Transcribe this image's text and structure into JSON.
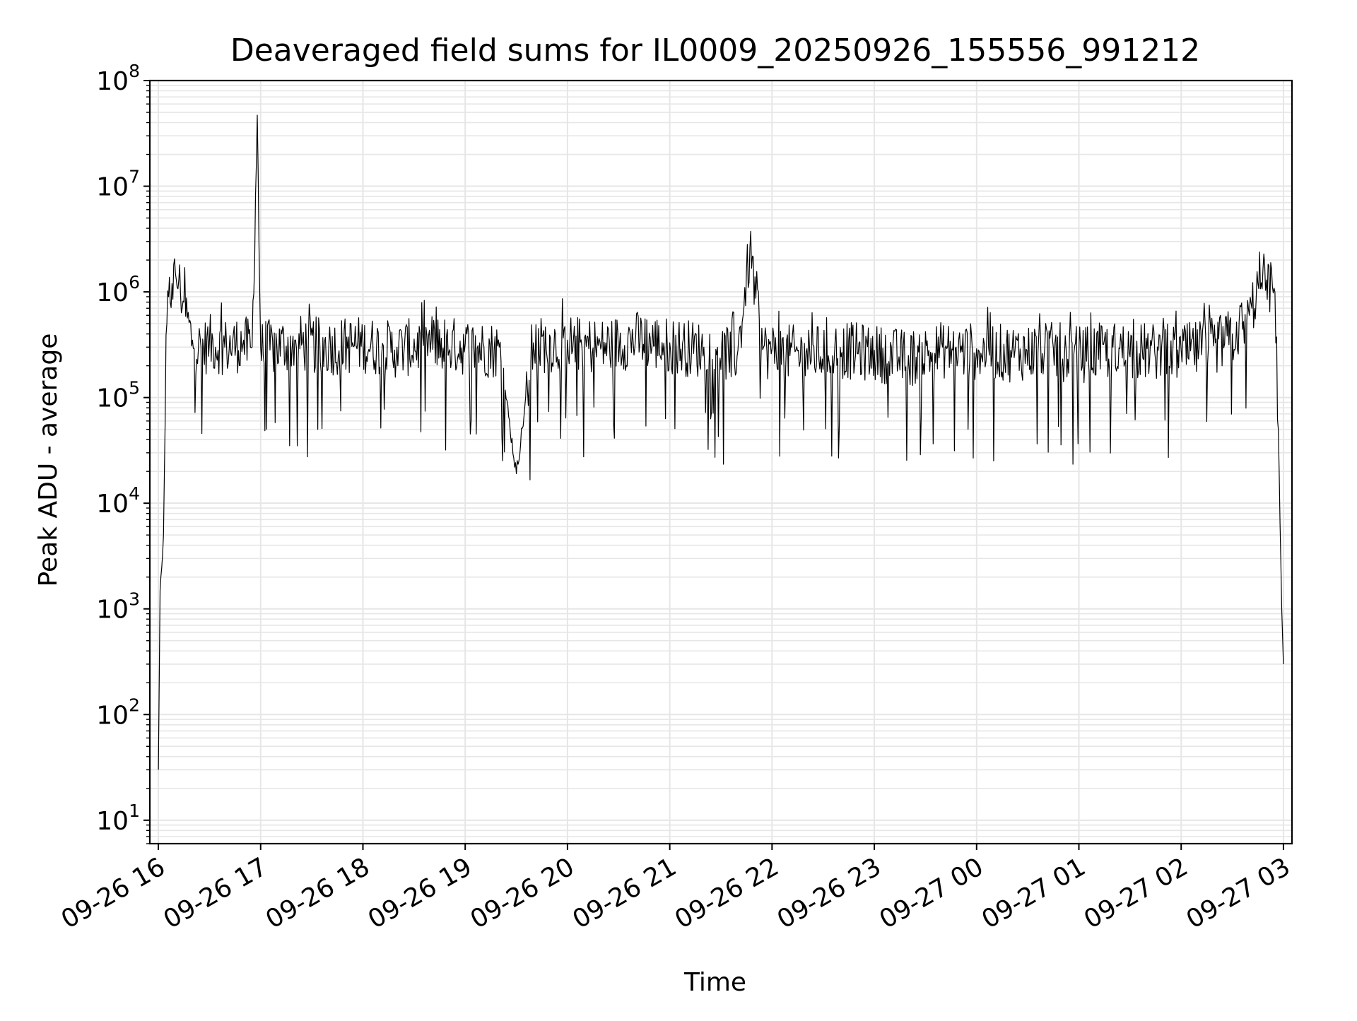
{
  "chart_data": {
    "type": "line",
    "title": "Deaveraged field sums for IL0009_20250926_155556_991212",
    "xlabel": "Time",
    "ylabel": "Peak ADU - average",
    "yscale": "log",
    "ylim": [
      6,
      100000000
    ],
    "xlim": [
      "2025-09-26 15:55",
      "2025-09-27 03:05"
    ],
    "grid": true,
    "line_color": "#000000",
    "grid_color": "#e6e6e6",
    "x_ticks": [
      {
        "value": "2025-09-26 16:00",
        "label": "09-26 16"
      },
      {
        "value": "2025-09-26 17:00",
        "label": "09-26 17"
      },
      {
        "value": "2025-09-26 18:00",
        "label": "09-26 18"
      },
      {
        "value": "2025-09-26 19:00",
        "label": "09-26 19"
      },
      {
        "value": "2025-09-26 20:00",
        "label": "09-26 20"
      },
      {
        "value": "2025-09-26 21:00",
        "label": "09-26 21"
      },
      {
        "value": "2025-09-26 22:00",
        "label": "09-26 22"
      },
      {
        "value": "2025-09-26 23:00",
        "label": "09-26 23"
      },
      {
        "value": "2025-09-27 00:00",
        "label": "09-27 00"
      },
      {
        "value": "2025-09-27 01:00",
        "label": "09-27 01"
      },
      {
        "value": "2025-09-27 02:00",
        "label": "09-27 02"
      },
      {
        "value": "2025-09-27 03:00",
        "label": "09-27 03"
      }
    ],
    "y_ticks": [
      {
        "value": 10,
        "base": "10",
        "exp": "1"
      },
      {
        "value": 100,
        "base": "10",
        "exp": "2"
      },
      {
        "value": 1000,
        "base": "10",
        "exp": "3"
      },
      {
        "value": 10000,
        "base": "10",
        "exp": "4"
      },
      {
        "value": 100000,
        "base": "10",
        "exp": "5"
      },
      {
        "value": 1000000,
        "base": "10",
        "exp": "6"
      },
      {
        "value": 10000000,
        "base": "10",
        "exp": "7"
      },
      {
        "value": 100000000,
        "base": "10",
        "exp": "8"
      }
    ],
    "series": [
      {
        "x": [
          "2025-09-26 16:00",
          "2025-09-26 16:01",
          "2025-09-26 16:02",
          "2025-09-26 16:03",
          "2025-09-26 16:04",
          "2025-09-26 16:05",
          "2025-09-26 16:06",
          "2025-09-26 16:08",
          "2025-09-26 16:10",
          "2025-09-26 16:12",
          "2025-09-26 16:15",
          "2025-09-26 16:20",
          "2025-09-26 16:25",
          "2025-09-26 16:30",
          "2025-09-26 16:40",
          "2025-09-26 16:50",
          "2025-09-26 16:55",
          "2025-09-26 16:58",
          "2025-09-26 17:00",
          "2025-09-26 17:20",
          "2025-09-26 17:40",
          "2025-09-26 18:00",
          "2025-09-26 18:20",
          "2025-09-26 18:40",
          "2025-09-26 19:00",
          "2025-09-26 19:20",
          "2025-09-26 19:30",
          "2025-09-26 19:40",
          "2025-09-26 20:00",
          "2025-09-26 20:20",
          "2025-09-26 20:40",
          "2025-09-26 21:00",
          "2025-09-26 21:20",
          "2025-09-26 21:40",
          "2025-09-26 21:47",
          "2025-09-26 21:55",
          "2025-09-26 22:00",
          "2025-09-26 22:20",
          "2025-09-26 22:40",
          "2025-09-26 23:00",
          "2025-09-26 23:20",
          "2025-09-26 23:40",
          "2025-09-27 00:00",
          "2025-09-27 00:20",
          "2025-09-27 00:40",
          "2025-09-27 01:00",
          "2025-09-27 01:20",
          "2025-09-27 01:40",
          "2025-09-27 02:00",
          "2025-09-27 02:20",
          "2025-09-27 02:30",
          "2025-09-27 02:40",
          "2025-09-27 02:45",
          "2025-09-27 02:50",
          "2025-09-27 02:55",
          "2025-09-27 02:57",
          "2025-09-27 02:59",
          "2025-09-27 03:00"
        ],
        "y": [
          30,
          1500,
          2500,
          5000,
          60000,
          500000,
          900000,
          1200000,
          1500000,
          1300000,
          800000,
          350000,
          300000,
          350000,
          320000,
          350000,
          300000,
          47000000,
          300000,
          350000,
          320000,
          340000,
          300000,
          350000,
          320000,
          300000,
          19000,
          330000,
          350000,
          320000,
          380000,
          330000,
          300000,
          280000,
          2600000,
          300000,
          290000,
          270000,
          300000,
          280000,
          250000,
          300000,
          290000,
          280000,
          300000,
          270000,
          300000,
          290000,
          280000,
          330000,
          400000,
          600000,
          1200000,
          1300000,
          1000000,
          50000,
          1000,
          300
        ]
      }
    ]
  }
}
